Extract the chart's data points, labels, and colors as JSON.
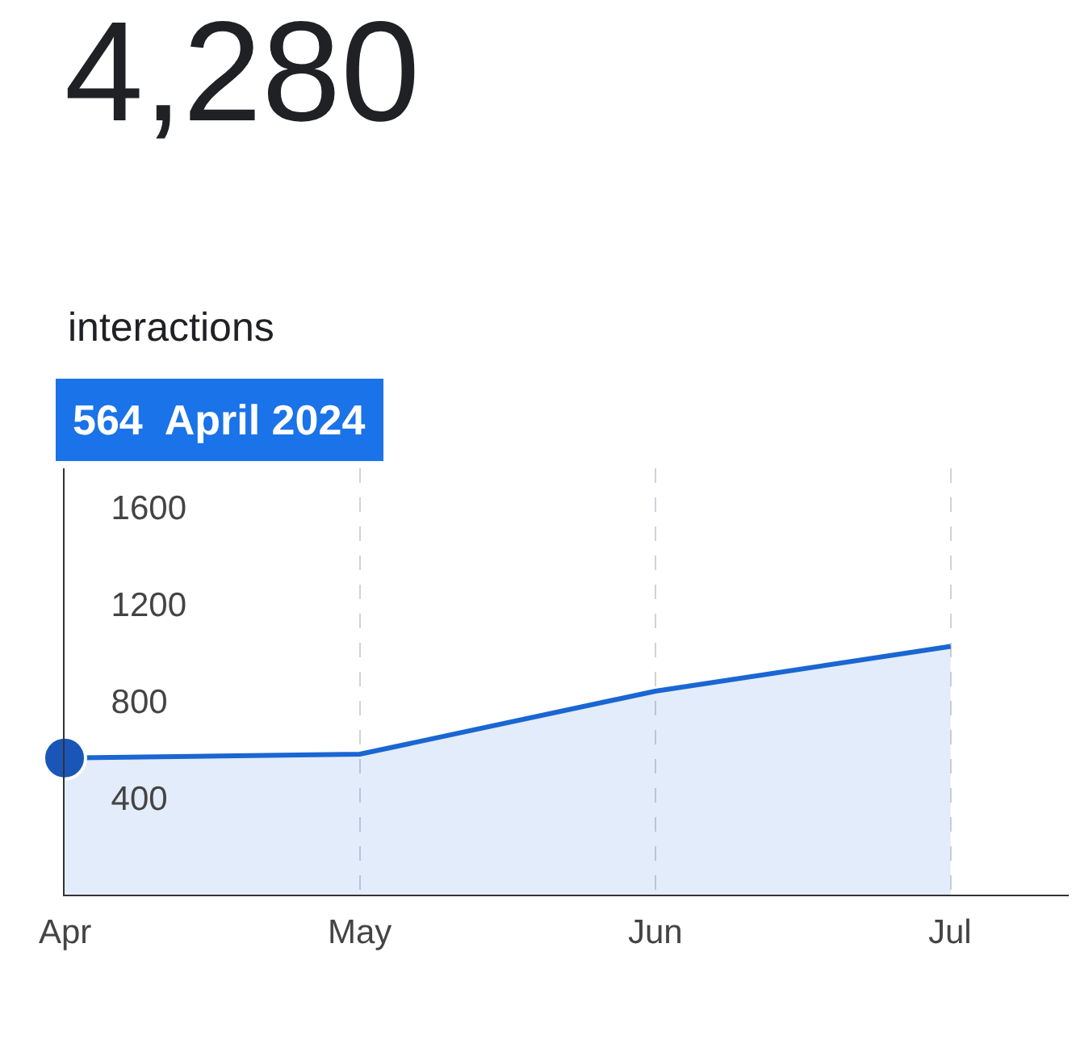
{
  "chart_data": {
    "type": "area",
    "title": "4,280",
    "subtitle": "interactions",
    "categories": [
      "Apr",
      "May",
      "Jun",
      "Jul"
    ],
    "series": [
      {
        "color": "#1a66d2",
        "values": [
          564,
          580,
          840,
          1025
        ]
      }
    ],
    "ylim": [
      0,
      1760
    ],
    "yticks": [
      400,
      800,
      1200,
      1600
    ],
    "grid": "x",
    "annotations": [
      "564  April 2024"
    ]
  }
}
